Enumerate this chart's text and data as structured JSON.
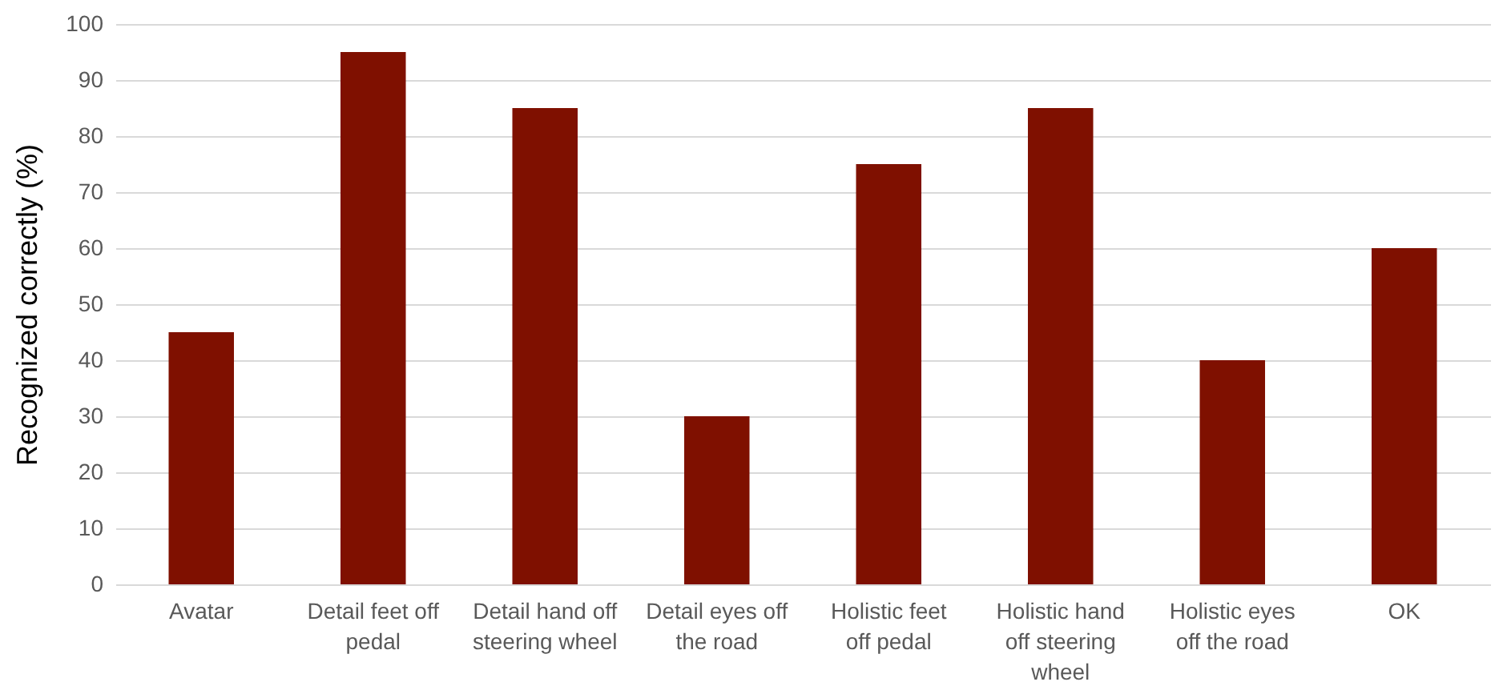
{
  "chart_data": {
    "type": "bar",
    "ylabel": "Recognized correctly (%)",
    "categories": [
      "Avatar",
      "Detail feet off pedal",
      "Detail hand off steering wheel",
      "Detail eyes off the road",
      "Holistic feet off pedal",
      "Holistic hand off steering wheel",
      "Holistic eyes off the road",
      "OK"
    ],
    "values": [
      45,
      95,
      85,
      30,
      75,
      85,
      40,
      60
    ],
    "color": "#7f1000",
    "ylim": [
      0,
      100
    ],
    "yticks": [
      0,
      10,
      20,
      30,
      40,
      50,
      60,
      70,
      80,
      90,
      100
    ],
    "grid": "y"
  }
}
